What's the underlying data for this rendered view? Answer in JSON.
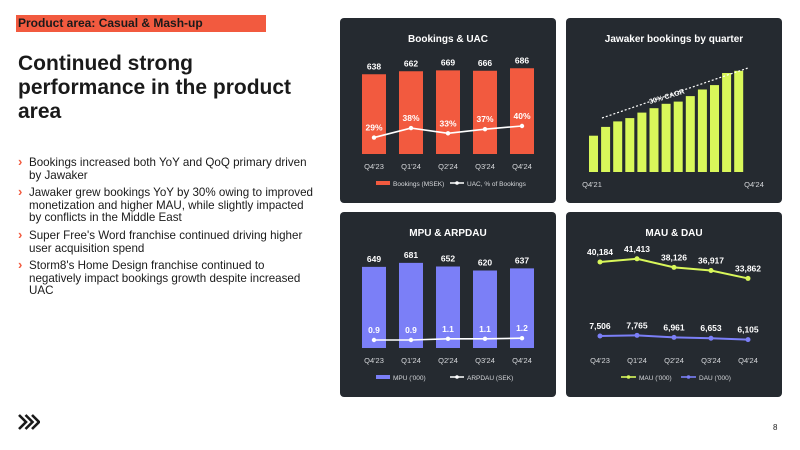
{
  "header": {
    "tag": "Product area: Casual & Mash-up"
  },
  "headline": "Continued strong performance in the product area",
  "bullets": [
    "Bookings increased both YoY and QoQ primary driven by Jawaker",
    "Jawaker grew bookings YoY by 30% owing to improved monetization and higher MAU, while slightly impacted by conflicts in the Middle East",
    "Super Free's Word franchise continued driving higher user acquisition spend",
    "Storm8's Home Design franchise continued to negatively impact bookings growth despite increased UAC"
  ],
  "page_number": "8",
  "colors": {
    "background": "#ffffff",
    "panel": "#252a30",
    "accent_orange": "#f25a3f",
    "purple": "#7b7ff7",
    "lime": "#d9f75a",
    "line_white": "#ffffff"
  },
  "chart_data": [
    {
      "id": "bookings-uac",
      "type": "bar",
      "title": "Bookings & UAC",
      "categories": [
        "Q4'23",
        "Q1'24",
        "Q2'24",
        "Q3'24",
        "Q4'24"
      ],
      "series": [
        {
          "name": "Bookings (MSEK)",
          "type": "bar",
          "values": [
            638,
            662,
            669,
            666,
            686
          ],
          "labels": [
            "638",
            "662",
            "669",
            "666",
            "686"
          ]
        },
        {
          "name": "UAC, % of Bookings",
          "type": "line",
          "values": [
            29,
            38,
            33,
            37,
            40
          ],
          "labels": [
            "29%",
            "38%",
            "33%",
            "37%",
            "40%"
          ]
        }
      ],
      "bar_color": "#f25a3f",
      "line_color": "#ffffff",
      "legend_position": "bottom"
    },
    {
      "id": "jawaker-bookings",
      "type": "bar",
      "title": "Jawaker bookings by quarter",
      "x_start": "Q4'21",
      "x_end": "Q4'24",
      "values": [
        0.33,
        0.41,
        0.46,
        0.49,
        0.54,
        0.58,
        0.62,
        0.64,
        0.69,
        0.75,
        0.79,
        0.9,
        0.92
      ],
      "annotation": "30% CAGR",
      "bar_color": "#d9f75a"
    },
    {
      "id": "mpu-arpdau",
      "type": "bar",
      "title": "MPU & ARPDAU",
      "categories": [
        "Q4'23",
        "Q1'24",
        "Q2'24",
        "Q3'24",
        "Q4'24"
      ],
      "series": [
        {
          "name": "MPU ('000)",
          "type": "bar",
          "values": [
            649,
            681,
            652,
            620,
            637
          ],
          "labels": [
            "649",
            "681",
            "652",
            "620",
            "637"
          ]
        },
        {
          "name": "ARPDAU (SEK)",
          "type": "line",
          "values": [
            0.9,
            0.9,
            1.1,
            1.1,
            1.2
          ],
          "labels": [
            "0.9",
            "0.9",
            "1.1",
            "1.1",
            "1.2"
          ]
        }
      ],
      "bar_color": "#7b7ff7",
      "line_color": "#ffffff",
      "legend_position": "bottom"
    },
    {
      "id": "mau-dau",
      "type": "line",
      "title": "MAU & DAU",
      "categories": [
        "Q4'23",
        "Q1'24",
        "Q2'24",
        "Q3'24",
        "Q4'24"
      ],
      "series": [
        {
          "name": "MAU ('000)",
          "values": [
            40184,
            41413,
            38126,
            36917,
            33862
          ],
          "labels": [
            "40,184",
            "41,413",
            "38,126",
            "36,917",
            "33,862"
          ],
          "color": "#d9f75a"
        },
        {
          "name": "DAU ('000)",
          "values": [
            7506,
            7765,
            6961,
            6653,
            6105
          ],
          "labels": [
            "7,506",
            "7,765",
            "6,961",
            "6,653",
            "6,105"
          ],
          "color": "#7b7ff7"
        }
      ],
      "legend_position": "bottom"
    }
  ]
}
